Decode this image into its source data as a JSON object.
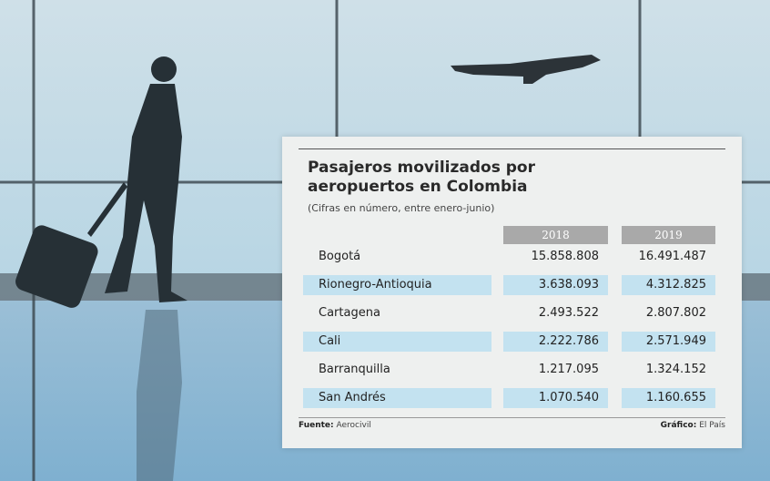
{
  "header": {
    "title": "Pasajeros movilizados por aeropuertos en Colombia",
    "subtitle": "(Cifras en número, entre enero-junio)"
  },
  "table": {
    "columns": [
      "2018",
      "2019"
    ],
    "rows": [
      [
        "Bogotá",
        "15.858.808",
        "16.491.487"
      ],
      [
        "Rionegro-Antioquia",
        "3.638.093",
        "4.312.825"
      ],
      [
        "Cartagena",
        "2.493.522",
        "2.807.802"
      ],
      [
        "Cali",
        "2.222.786",
        "2.571.949"
      ],
      [
        "Barranquilla",
        "1.217.095",
        "1.324.152"
      ],
      [
        "San Andrés",
        "1.070.540",
        "1.160.655"
      ]
    ]
  },
  "footer": {
    "source_label": "Fuente:",
    "source": "Aerocivil",
    "credit_label": "Gráfico:",
    "credit": "El País"
  }
}
